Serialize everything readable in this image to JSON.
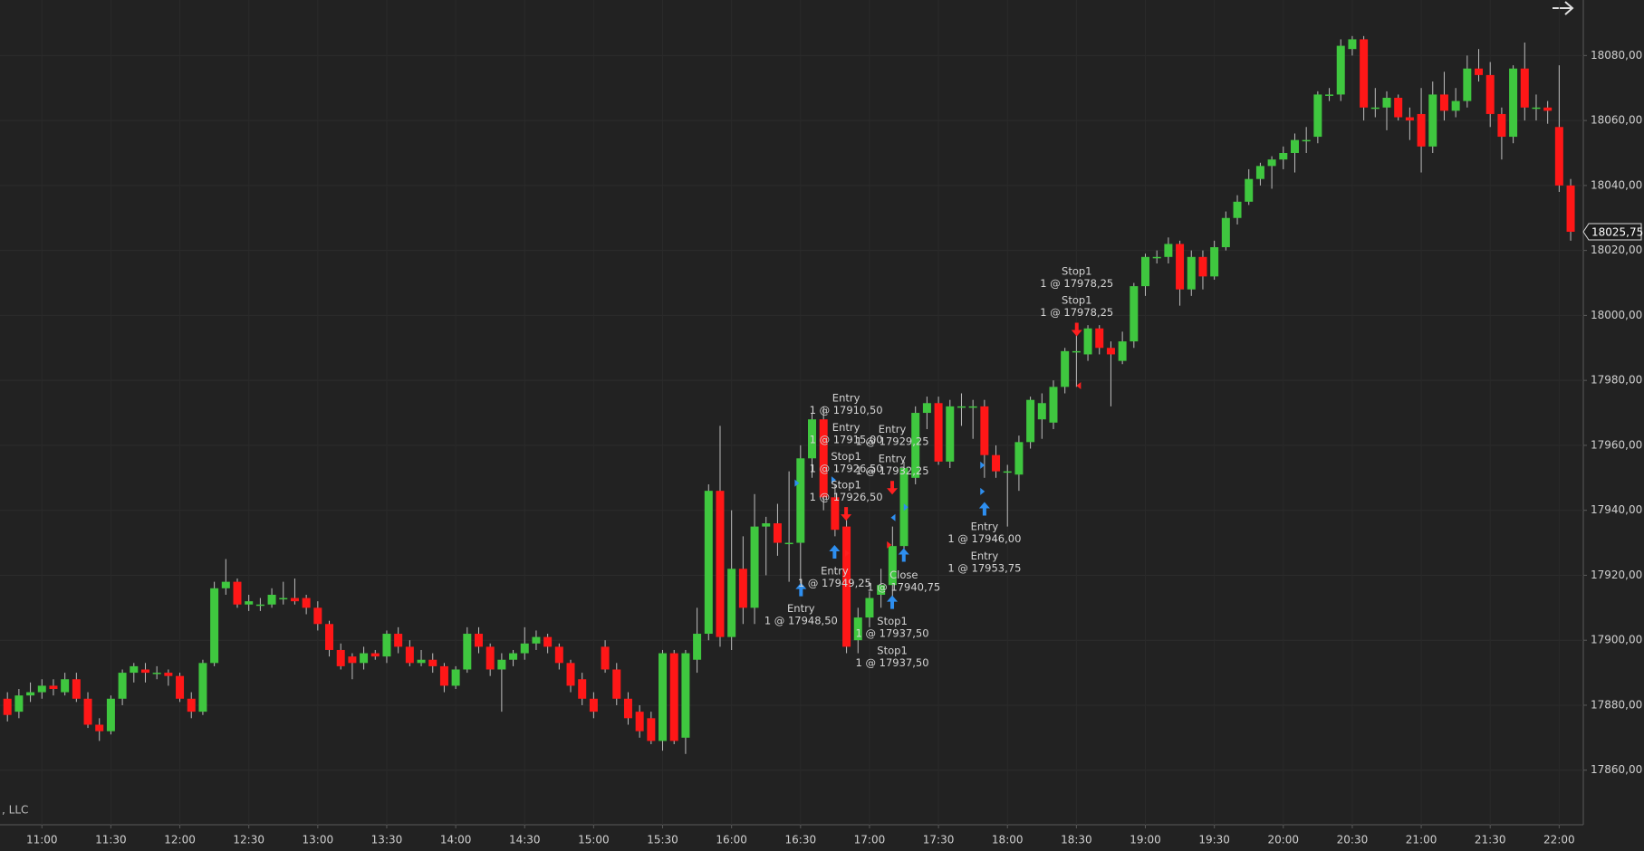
{
  "chart_data": {
    "type": "candlestick",
    "x": [
      "10:45",
      "10:50",
      "10:55",
      "11:00",
      "11:05",
      "11:10",
      "11:15",
      "11:20",
      "11:25",
      "11:30",
      "11:35",
      "11:40",
      "11:45",
      "11:50",
      "11:55",
      "12:00",
      "12:05",
      "12:10",
      "12:15",
      "12:20",
      "12:25",
      "12:30",
      "12:35",
      "12:40",
      "12:45",
      "12:50",
      "12:55",
      "13:00",
      "13:05",
      "13:10",
      "13:15",
      "13:20",
      "13:25",
      "13:30",
      "13:35",
      "13:40",
      "13:45",
      "13:50",
      "13:55",
      "14:00",
      "14:05",
      "14:10",
      "14:15",
      "14:20",
      "14:25",
      "14:30",
      "14:35",
      "14:40",
      "14:45",
      "14:50",
      "14:55",
      "15:00",
      "15:05",
      "15:10",
      "15:15",
      "15:20",
      "15:25",
      "15:30",
      "15:35",
      "15:40",
      "15:45",
      "15:50",
      "15:55",
      "16:00",
      "16:05",
      "16:10",
      "16:15",
      "16:20",
      "16:25",
      "16:30",
      "16:35",
      "16:40",
      "16:45",
      "16:50",
      "16:55",
      "17:00",
      "17:05",
      "17:10",
      "17:15",
      "17:20",
      "17:25",
      "17:30",
      "17:35",
      "17:40",
      "17:45",
      "17:50",
      "17:55",
      "18:00",
      "18:05",
      "18:10",
      "18:15",
      "18:20",
      "18:25",
      "18:30",
      "18:35",
      "18:40",
      "18:45",
      "18:50",
      "18:55",
      "19:00",
      "19:05",
      "19:10",
      "19:15",
      "19:20",
      "19:25",
      "19:30",
      "19:35",
      "19:40",
      "19:45",
      "19:50",
      "19:55",
      "20:00",
      "20:05",
      "20:10",
      "20:15",
      "20:20",
      "20:25",
      "20:30",
      "20:35",
      "20:40",
      "20:45",
      "20:50",
      "20:55",
      "21:00",
      "21:05",
      "21:10",
      "21:15",
      "21:20",
      "21:25",
      "21:30",
      "21:35",
      "21:40",
      "21:45",
      "21:50",
      "21:55",
      "22:00",
      "22:05"
    ],
    "open": [
      17882,
      17878,
      17883,
      17884,
      17886,
      17884,
      17888,
      17882,
      17874,
      17872,
      17882,
      17890,
      17891,
      17890,
      17890,
      17889,
      17882,
      17878,
      17893,
      17916,
      17918,
      17911,
      17911,
      17911,
      17913,
      17913,
      17913,
      17910,
      17905,
      17897,
      17895,
      17893,
      17896,
      17895,
      17902,
      17898,
      17893,
      17894,
      17892,
      17886,
      17891,
      17902,
      17898,
      17891,
      17894,
      17896,
      17899,
      17901,
      17898,
      17893,
      17888,
      17882,
      17898,
      17891,
      17882,
      17878,
      17876,
      17869,
      17896,
      17870,
      17894,
      17902,
      17946,
      17901,
      17922,
      17910,
      17935,
      17936,
      17930,
      17930,
      17956,
      17968,
      17944,
      17935,
      17900,
      17907,
      17914,
      17917,
      17929,
      17950,
      17970,
      17973,
      17955,
      17972,
      17972,
      17972,
      17957,
      17952,
      17951,
      17961,
      17968,
      17967,
      17978,
      17989,
      17988,
      17996,
      17990,
      17986,
      17992,
      18009,
      18018,
      18018,
      18022,
      18008,
      18018,
      18012,
      18021,
      18030,
      18035,
      18042,
      18046,
      18048,
      18050,
      18054,
      18055,
      18068,
      18068,
      18082,
      18085,
      18064,
      18064,
      18067,
      18061,
      18062,
      18052,
      18068,
      18063,
      18066,
      18076,
      18074,
      18062,
      18055,
      18076,
      18064,
      18064,
      18058,
      18040
    ],
    "high": [
      17884,
      17885,
      17887,
      17888,
      17888,
      17890,
      17890,
      17884,
      17876,
      17883,
      17891,
      17893,
      17893,
      17892,
      17891,
      17890,
      17884,
      17894,
      17918,
      17925,
      17919,
      17914,
      17913,
      17916,
      17918,
      17919,
      17914,
      17912,
      17906,
      17899,
      17896,
      17898,
      17897,
      17903,
      17904,
      17900,
      17897,
      17896,
      17893,
      17892,
      17904,
      17904,
      17899,
      17896,
      17897,
      17904,
      17903,
      17902,
      17899,
      17894,
      17890,
      17884,
      17900,
      17893,
      17884,
      17880,
      17878,
      17897,
      17897,
      17897,
      17910,
      17948,
      17966,
      17940,
      17932,
      17945,
      17938,
      17942,
      17952,
      17960,
      17970,
      17972,
      17948,
      17937,
      17910,
      17915,
      17922,
      17935,
      17955,
      17972,
      17975,
      17975,
      17974,
      17976,
      17974,
      17974,
      17960,
      17954,
      17963,
      17975,
      17976,
      17980,
      17990,
      17997,
      17997,
      17997,
      17992,
      17995,
      18010,
      18019,
      18020,
      18024,
      18023,
      18020,
      18020,
      18023,
      18032,
      18037,
      18045,
      18047,
      18049,
      18052,
      18056,
      18058,
      18069,
      18070,
      18085,
      18086,
      18086,
      18070,
      18069,
      18068,
      18064,
      18070,
      18072,
      18075,
      18070,
      18080,
      18082,
      18078,
      18064,
      18077,
      18084,
      18068,
      18066,
      18077,
      18042
    ],
    "low": [
      17875,
      17876,
      17881,
      17882,
      17883,
      17883,
      17881,
      17873,
      17869,
      17871,
      17880,
      17887,
      17887,
      17888,
      17886,
      17881,
      17876,
      17877,
      17892,
      17914,
      17910,
      17909,
      17909,
      17910,
      17911,
      17911,
      17908,
      17903,
      17895,
      17891,
      17888,
      17891,
      17894,
      17893,
      17896,
      17892,
      17892,
      17890,
      17884,
      17885,
      17890,
      17896,
      17889,
      17878,
      17892,
      17894,
      17897,
      17896,
      17891,
      17884,
      17880,
      17876,
      17890,
      17880,
      17874,
      17870,
      17868,
      17866,
      17868,
      17865,
      17890,
      17900,
      17898,
      17897,
      17905,
      17905,
      17920,
      17926,
      17918,
      17915,
      17950,
      17940,
      17932,
      17896,
      17896,
      17904,
      17910,
      17912,
      17926,
      17948,
      17965,
      17954,
      17953,
      17966,
      17962,
      17950,
      17950,
      17935,
      17946,
      17959,
      17962,
      17965,
      17976,
      17978,
      17986,
      17988,
      17972,
      17985,
      17990,
      18006,
      18016,
      18016,
      18003,
      18006,
      18008,
      18011,
      18020,
      18028,
      18034,
      18040,
      18039,
      18045,
      18044,
      18050,
      18053,
      18066,
      18066,
      18080,
      18060,
      18061,
      18057,
      18060,
      18054,
      18044,
      18050,
      18060,
      18061,
      18064,
      18072,
      18058,
      18048,
      18053,
      18060,
      18060,
      18059,
      18038,
      18023
    ],
    "close": [
      17877,
      17883,
      17884,
      17886,
      17885,
      17888,
      17882,
      17874,
      17872,
      17882,
      17890,
      17892,
      17890,
      17890,
      17889,
      17882,
      17878,
      17893,
      17916,
      17918,
      17911,
      17912,
      17911,
      17914,
      17913,
      17912,
      17910,
      17905,
      17897,
      17892,
      17893,
      17896,
      17895,
      17902,
      17898,
      17893,
      17894,
      17892,
      17886,
      17891,
      17902,
      17898,
      17891,
      17894,
      17896,
      17899,
      17901,
      17898,
      17893,
      17886,
      17882,
      17878,
      17891,
      17882,
      17876,
      17872,
      17869,
      17896,
      17869,
      17896,
      17902,
      17946,
      17901,
      17922,
      17910,
      17935,
      17936,
      17930,
      17930,
      17956,
      17968,
      17944,
      17934,
      17898,
      17907,
      17913,
      17917,
      17929,
      17953,
      17970,
      17973,
      17955,
      17972,
      17972,
      17972,
      17957,
      17952,
      17952,
      17961,
      17974,
      17973,
      17978,
      17989,
      17989,
      17996,
      17990,
      17988,
      17992,
      18009,
      18018,
      18018,
      18022,
      18008,
      18018,
      18012,
      18021,
      18030,
      18035,
      18042,
      18046,
      18048,
      18050,
      18054,
      18054,
      18068,
      18068,
      18083,
      18085,
      18064,
      18064,
      18067,
      18061,
      18060,
      18052,
      18068,
      18063,
      18066,
      18076,
      18074,
      18062,
      18055,
      18076,
      18064,
      18064,
      18063,
      18040,
      18025.75
    ],
    "up_color": "#3fc73f",
    "down_color": "#ff1717",
    "ylim": [
      17843.2,
      18097.1
    ],
    "yticks": [
      {
        "value": 17860,
        "label": "17860,00"
      },
      {
        "value": 17880,
        "label": "17880,00"
      },
      {
        "value": 17900,
        "label": "17900,00"
      },
      {
        "value": 17920,
        "label": "17920,00"
      },
      {
        "value": 17940,
        "label": "17940,00"
      },
      {
        "value": 17960,
        "label": "17960,00"
      },
      {
        "value": 17980,
        "label": "17980,00"
      },
      {
        "value": 18000,
        "label": "18000,00"
      },
      {
        "value": 18020,
        "label": "18020,00"
      },
      {
        "value": 18040,
        "label": "18040,00"
      },
      {
        "value": 18060,
        "label": "18060,00"
      },
      {
        "value": 18080,
        "label": "18080,00"
      }
    ],
    "xticks": [
      "11:00",
      "11:30",
      "12:00",
      "12:30",
      "13:00",
      "13:30",
      "14:00",
      "14:30",
      "15:00",
      "15:30",
      "16:00",
      "16:30",
      "17:00",
      "17:30",
      "18:00",
      "18:30",
      "19:00",
      "19:30",
      "20:00",
      "20:30",
      "21:00",
      "21:30",
      "22:00"
    ],
    "grid": true,
    "last_price": {
      "value": 18025.75,
      "label": "18025,75"
    },
    "watermark": ", LLC",
    "annotations": [
      {
        "title": "Entry",
        "detail": "1 @ 17910,50"
      },
      {
        "title": "Entry",
        "detail": "1 @ 17915,00"
      },
      {
        "title": "Stop1",
        "detail": "1 @ 17926,50"
      },
      {
        "title": "Stop1",
        "detail": "1 @ 17926,50"
      },
      {
        "title": "Entry",
        "detail": "1 @ 17929,25"
      },
      {
        "title": "Entry",
        "detail": "1 @ 17932,25"
      },
      {
        "title": "Entry",
        "detail": "1 @ 17949,25"
      },
      {
        "title": "Entry",
        "detail": "1 @ 17948,50"
      },
      {
        "title": "Close",
        "detail": "1 @ 17940,75"
      },
      {
        "title": "Stop1",
        "detail": "1 @ 17937,50"
      },
      {
        "title": "Stop1",
        "detail": "1 @ 17937,50"
      },
      {
        "title": "Entry",
        "detail": "1 @ 17946,00"
      },
      {
        "title": "Entry",
        "detail": "1 @ 17953,75"
      },
      {
        "title": "Stop1",
        "detail": "1 @ 17978,25"
      },
      {
        "title": "Stop1",
        "detail": "1 @ 17978,25"
      }
    ]
  }
}
